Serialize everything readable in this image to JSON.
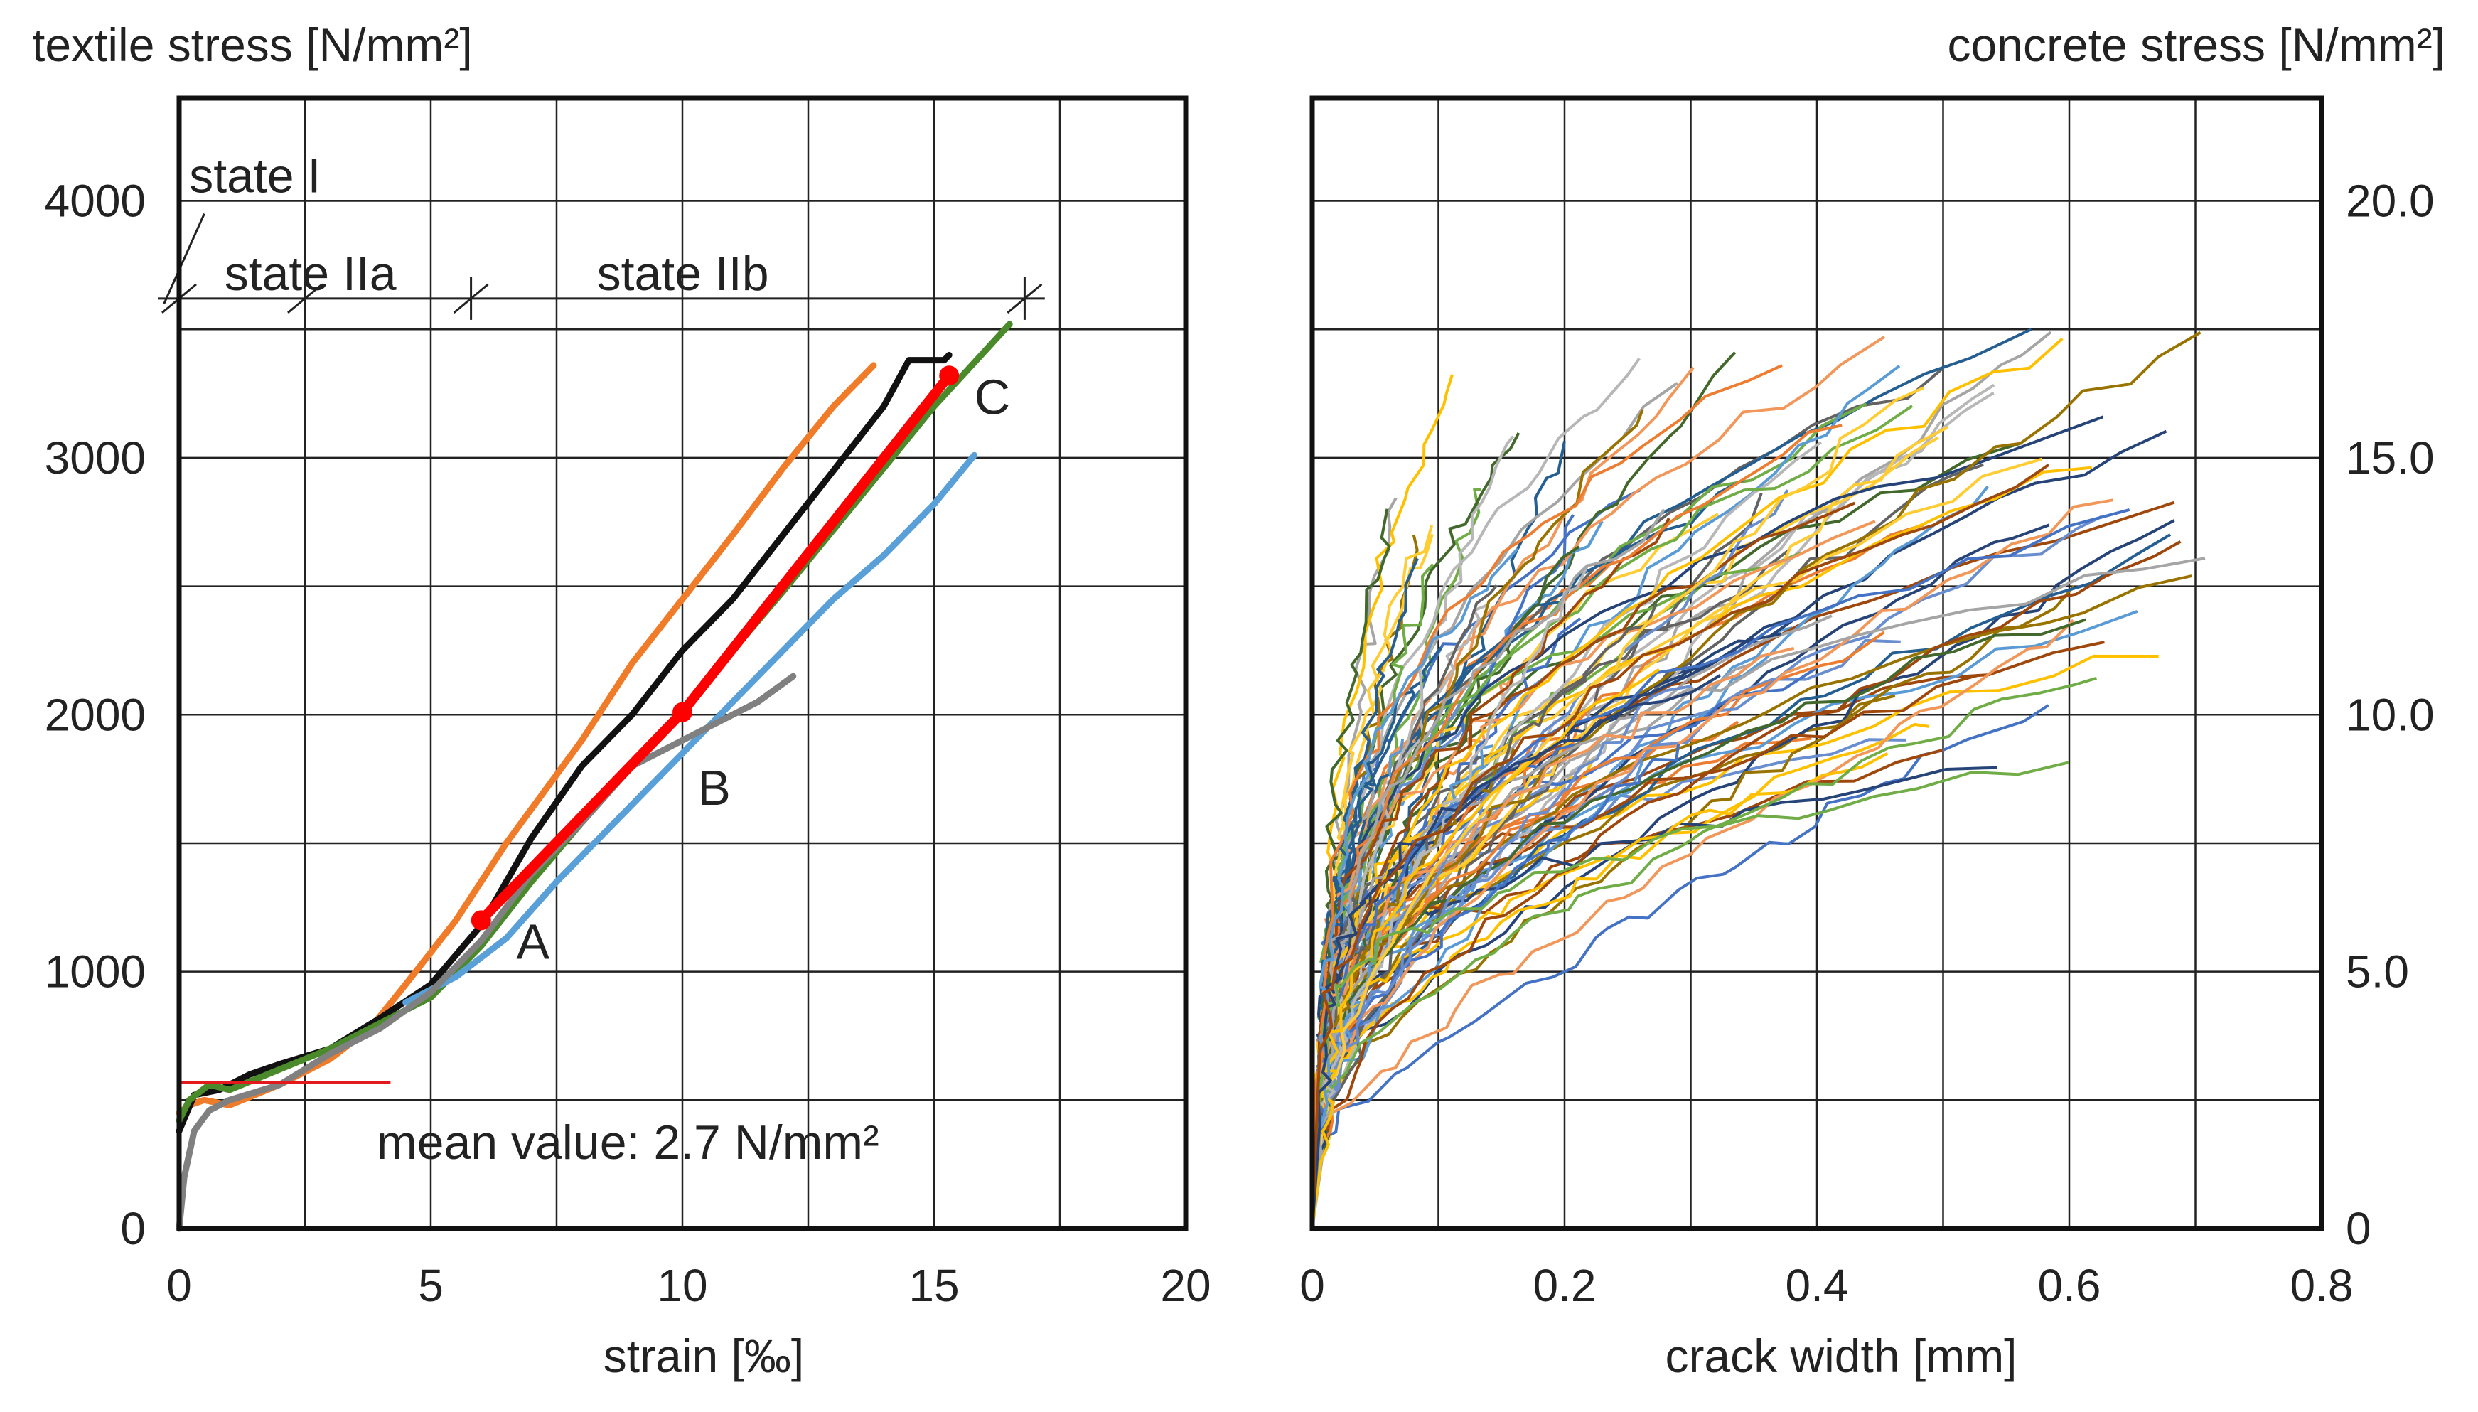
{
  "chart_data": [
    {
      "type": "line",
      "id": "left",
      "title": "",
      "ylabel": "textile stress [N/mm²]",
      "xlabel": "strain [‰]",
      "xlim": [
        0,
        20
      ],
      "ylim": [
        0,
        4400
      ],
      "x_ticks": [
        0,
        5,
        10,
        15,
        20
      ],
      "x_tick_labels": [
        "0",
        "5",
        "10",
        "15",
        "20"
      ],
      "y_ticks": [
        0,
        1000,
        2000,
        3000,
        4000
      ],
      "y_tick_labels": [
        "0",
        "1000",
        "2000",
        "3000",
        "4000"
      ],
      "x_grid": [
        0,
        2.5,
        5,
        7.5,
        10,
        12.5,
        15,
        17.5,
        20
      ],
      "y_grid": [
        0,
        500,
        1000,
        1500,
        2000,
        2500,
        3000,
        3500,
        4000,
        4400
      ],
      "states": {
        "line_y": 3620,
        "marks_x": [
          0,
          2.5,
          5.8,
          16.8
        ],
        "labels": [
          {
            "text": "state I",
            "x": 0.2,
            "y": 4000
          },
          {
            "text": "state IIa",
            "x": 0.9,
            "y": 3620
          },
          {
            "text": "state IIb",
            "x": 8.3,
            "y": 3620
          }
        ]
      },
      "mean_line": {
        "y": 570,
        "x_start": 0,
        "x_end": 4.2,
        "color": "#e31a1c",
        "label": "mean value: 2.7 N/mm²"
      },
      "series": [
        {
          "name": "orange",
          "color": "#f07c2a",
          "x": [
            0,
            0.2,
            0.5,
            1.0,
            1.5,
            2.0,
            3.0,
            3.8,
            4.5,
            5.5,
            6.5,
            8.0,
            9.0,
            10.0,
            11.0,
            12.0,
            13.0,
            13.8
          ],
          "y": [
            450,
            480,
            500,
            480,
            520,
            560,
            660,
            780,
            950,
            1200,
            1500,
            1900,
            2200,
            2450,
            2700,
            2960,
            3200,
            3360
          ]
        },
        {
          "name": "black",
          "color": "#111111",
          "x": [
            0,
            0.3,
            0.8,
            1.4,
            2.0,
            3.0,
            4.0,
            5.0,
            6.0,
            7.0,
            8.0,
            9.0,
            10.0,
            11.0,
            12.0,
            13.0,
            14.0,
            14.5,
            15.2,
            15.3
          ],
          "y": [
            380,
            520,
            540,
            600,
            640,
            700,
            820,
            950,
            1180,
            1520,
            1800,
            2000,
            2250,
            2450,
            2700,
            2950,
            3200,
            3380,
            3380,
            3400
          ]
        },
        {
          "name": "green",
          "color": "#4a8a2a",
          "x": [
            0,
            0.2,
            0.6,
            1.0,
            1.5,
            2.0,
            3.0,
            4.0,
            5.0,
            6.0,
            7.0,
            8.0,
            9.0,
            10.0,
            11.0,
            12.0,
            13.0,
            14.0,
            15.0,
            16.5
          ],
          "y": [
            420,
            500,
            560,
            540,
            580,
            620,
            700,
            800,
            900,
            1100,
            1350,
            1580,
            1800,
            2000,
            2250,
            2480,
            2720,
            2960,
            3200,
            3520
          ]
        },
        {
          "name": "blue",
          "color": "#5aa0d8",
          "x": [
            4.5,
            5.5,
            6.5,
            7.5,
            8.5,
            10.0,
            11.0,
            12.0,
            13.0,
            14.0,
            15.0,
            15.8
          ],
          "y": [
            880,
            980,
            1130,
            1350,
            1550,
            1850,
            2050,
            2250,
            2450,
            2620,
            2820,
            3010
          ]
        },
        {
          "name": "grey",
          "color": "#808080",
          "x": [
            0,
            0.1,
            0.3,
            0.6,
            1.0,
            2.0,
            3.0,
            4.0,
            5.0,
            6.0,
            7.0,
            8.0,
            9.0,
            9.8,
            10.5,
            11.5,
            12.2
          ],
          "y": [
            0,
            200,
            380,
            460,
            500,
            560,
            680,
            780,
            920,
            1120,
            1380,
            1580,
            1800,
            1880,
            1950,
            2050,
            2150
          ]
        },
        {
          "name": "red",
          "color": "#ff0000",
          "x": [
            6.0,
            10.0,
            15.3
          ],
          "y": [
            1200,
            2010,
            3320
          ]
        }
      ],
      "points": [
        {
          "label": "A",
          "x": 6.0,
          "y": 1200,
          "label_x": 6.7,
          "label_y": 1050
        },
        {
          "label": "B",
          "x": 10.0,
          "y": 2010,
          "label_x": 10.3,
          "label_y": 1650
        },
        {
          "label": "C",
          "x": 15.3,
          "y": 3320,
          "label_x": 15.8,
          "label_y": 3170
        }
      ]
    },
    {
      "type": "line",
      "id": "right",
      "title": "",
      "ylabel": "concrete stress [N/mm²]",
      "xlabel": "crack width [mm]",
      "xlim": [
        0,
        0.8
      ],
      "ylim": [
        0,
        22
      ],
      "x_ticks": [
        0,
        0.2,
        0.4,
        0.6,
        0.8
      ],
      "x_tick_labels": [
        "0",
        "0.2",
        "0.4",
        "0.6",
        "0.8"
      ],
      "y_ticks": [
        0,
        5,
        10,
        15,
        20
      ],
      "y_tick_labels": [
        "0",
        "5.0",
        "10.0",
        "15.0",
        "20.0"
      ],
      "x_grid": [
        0,
        0.1,
        0.2,
        0.3,
        0.4,
        0.5,
        0.6,
        0.7,
        0.8
      ],
      "y_grid": [
        0,
        2.5,
        5,
        7.5,
        10,
        12.5,
        15,
        17.5,
        20,
        22
      ],
      "series_count": 120,
      "series_colors": [
        "#4472c4",
        "#ed7d31",
        "#a5a5a5",
        "#ffc000",
        "#5b9bd5",
        "#70ad47",
        "#264478",
        "#9e480e",
        "#636363",
        "#997300",
        "#255e91",
        "#43682b",
        "#698ed0",
        "#f1975a",
        "#b7b7b7",
        "#ffcd33"
      ]
    }
  ]
}
